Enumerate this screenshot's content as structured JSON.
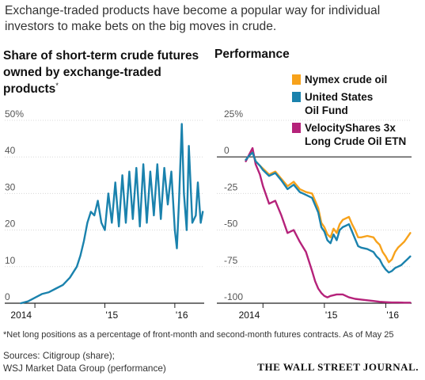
{
  "intro": "Exchange-traded products have become a popular way for individual investors to make bets on the big moves in crude.",
  "footnote": "*Net long positions as a percentage of front-month and second-month futures contracts. As of May 25",
  "sources_line1": "Sources: Citigroup (share);",
  "sources_line2": "WSJ Market Data Group (performance)",
  "publisher": "THE WALL STREET JOURNAL.",
  "colors": {
    "nymex": "#f7a21b",
    "uso": "#1a82ad",
    "velocity": "#b5227a",
    "share": "#1a82ad",
    "axis": "#333333",
    "grid": "#d8d8d8"
  },
  "chart_data": [
    {
      "type": "line",
      "title": "Share of short-term crude futures owned by exchange-traded products",
      "title_marker": "*",
      "ytick_labels": [
        "50%",
        "40",
        "30",
        "20",
        "10",
        "0"
      ],
      "yticks": [
        50,
        40,
        30,
        20,
        10,
        0
      ],
      "ylim": [
        0,
        50
      ],
      "xtick_labels": [
        "2014",
        "'15",
        "'16"
      ],
      "xticks": [
        2014.0,
        2015.0,
        2016.0
      ],
      "xlim": [
        2013.75,
        2016.42
      ],
      "series": [
        {
          "x": [
            2013.8,
            2013.9,
            2014.0,
            2014.1,
            2014.2,
            2014.3,
            2014.4,
            2014.5,
            2014.6,
            2014.65,
            2014.7,
            2014.75,
            2014.8,
            2014.85,
            2014.9,
            2014.95,
            2015.0,
            2015.05,
            2015.1,
            2015.15,
            2015.2,
            2015.25,
            2015.3,
            2015.35,
            2015.4,
            2015.45,
            2015.5,
            2015.55,
            2015.6,
            2015.65,
            2015.7,
            2015.75,
            2015.8,
            2015.85,
            2015.9,
            2015.95,
            2016.0,
            2016.03,
            2016.06,
            2016.1,
            2016.13,
            2016.17,
            2016.2,
            2016.25,
            2016.3,
            2016.33,
            2016.37,
            2016.4
          ],
          "values": [
            0,
            0.5,
            1.5,
            2.5,
            3,
            4,
            5,
            7,
            10,
            13,
            17,
            22,
            25,
            24,
            28,
            22,
            20,
            30,
            22,
            33,
            21,
            35,
            22,
            36,
            23,
            37,
            21,
            38,
            22,
            36,
            24,
            38,
            23,
            37,
            27,
            36,
            20,
            15,
            28,
            49,
            30,
            20,
            43,
            22,
            24,
            33,
            22,
            25
          ]
        }
      ]
    },
    {
      "type": "line",
      "title": "Performance",
      "ytick_labels": [
        "25%",
        "0",
        "-25",
        "-50",
        "-75",
        "-100"
      ],
      "yticks": [
        25,
        0,
        -25,
        -50,
        -75,
        -100
      ],
      "ylim": [
        -100,
        25
      ],
      "xtick_labels": [
        "2014",
        "'15",
        "'16"
      ],
      "xticks": [
        2014.0,
        2015.0,
        2016.0
      ],
      "xlim": [
        2013.7,
        2016.42
      ],
      "legend_placement": "top-right",
      "series": [
        {
          "name": "Nymex crude oil",
          "color_key": "nymex",
          "x": [
            2013.72,
            2013.78,
            2013.83,
            2013.88,
            2013.95,
            2014.0,
            2014.1,
            2014.2,
            2014.3,
            2014.4,
            2014.5,
            2014.6,
            2014.7,
            2014.8,
            2014.85,
            2014.9,
            2014.95,
            2015.0,
            2015.05,
            2015.1,
            2015.15,
            2015.2,
            2015.25,
            2015.3,
            2015.35,
            2015.4,
            2015.45,
            2015.5,
            2015.55,
            2015.6,
            2015.7,
            2015.8,
            2015.85,
            2015.9,
            2015.95,
            2016.0,
            2016.05,
            2016.1,
            2016.15,
            2016.2,
            2016.25,
            2016.3,
            2016.35,
            2016.4
          ],
          "values": [
            -2,
            1,
            4,
            -3,
            -6,
            -8,
            -12,
            -10,
            -15,
            -20,
            -17,
            -22,
            -24,
            -25,
            -30,
            -35,
            -45,
            -48,
            -53,
            -55,
            -49,
            -52,
            -46,
            -43,
            -42,
            -41,
            -46,
            -50,
            -55,
            -55,
            -54,
            -55,
            -58,
            -60,
            -65,
            -68,
            -72,
            -70,
            -65,
            -62,
            -60,
            -58,
            -55,
            -52
          ]
        },
        {
          "name": "United States Oil Fund",
          "color_key": "uso",
          "x": [
            2013.72,
            2013.78,
            2013.83,
            2013.88,
            2013.95,
            2014.0,
            2014.1,
            2014.2,
            2014.3,
            2014.4,
            2014.5,
            2014.6,
            2014.7,
            2014.8,
            2014.85,
            2014.9,
            2014.95,
            2015.0,
            2015.05,
            2015.1,
            2015.15,
            2015.2,
            2015.25,
            2015.3,
            2015.35,
            2015.4,
            2015.45,
            2015.5,
            2015.55,
            2015.6,
            2015.7,
            2015.8,
            2015.85,
            2015.9,
            2015.95,
            2016.0,
            2016.05,
            2016.1,
            2016.15,
            2016.2,
            2016.25,
            2016.3,
            2016.35,
            2016.4
          ],
          "values": [
            -2,
            1,
            3,
            -3,
            -6,
            -9,
            -13,
            -11,
            -16,
            -22,
            -19,
            -24,
            -26,
            -28,
            -33,
            -38,
            -48,
            -51,
            -57,
            -59,
            -53,
            -57,
            -50,
            -48,
            -47,
            -46,
            -51,
            -56,
            -61,
            -62,
            -63,
            -65,
            -68,
            -70,
            -74,
            -77,
            -79,
            -78,
            -76,
            -75,
            -74,
            -72,
            -70,
            -68
          ]
        },
        {
          "name": "VelocityShares 3x Long Crude Oil ETN",
          "color_key": "velocity",
          "x": [
            2013.72,
            2013.78,
            2013.83,
            2013.88,
            2013.95,
            2014.0,
            2014.1,
            2014.2,
            2014.3,
            2014.4,
            2014.5,
            2014.6,
            2014.7,
            2014.8,
            2014.85,
            2014.9,
            2014.95,
            2015.0,
            2015.05,
            2015.1,
            2015.2,
            2015.3,
            2015.4,
            2015.5,
            2015.6,
            2015.7,
            2015.8,
            2015.9,
            2016.0,
            2016.1,
            2016.2,
            2016.3,
            2016.4
          ],
          "values": [
            -3,
            2,
            6,
            -5,
            -12,
            -20,
            -32,
            -30,
            -40,
            -52,
            -50,
            -58,
            -65,
            -78,
            -85,
            -90,
            -93,
            -95,
            -96,
            -95,
            -94,
            -94,
            -96,
            -97,
            -97.5,
            -98,
            -98.5,
            -99,
            -99.3,
            -99.5,
            -99.5,
            -99.6,
            -99.6
          ]
        }
      ]
    }
  ]
}
